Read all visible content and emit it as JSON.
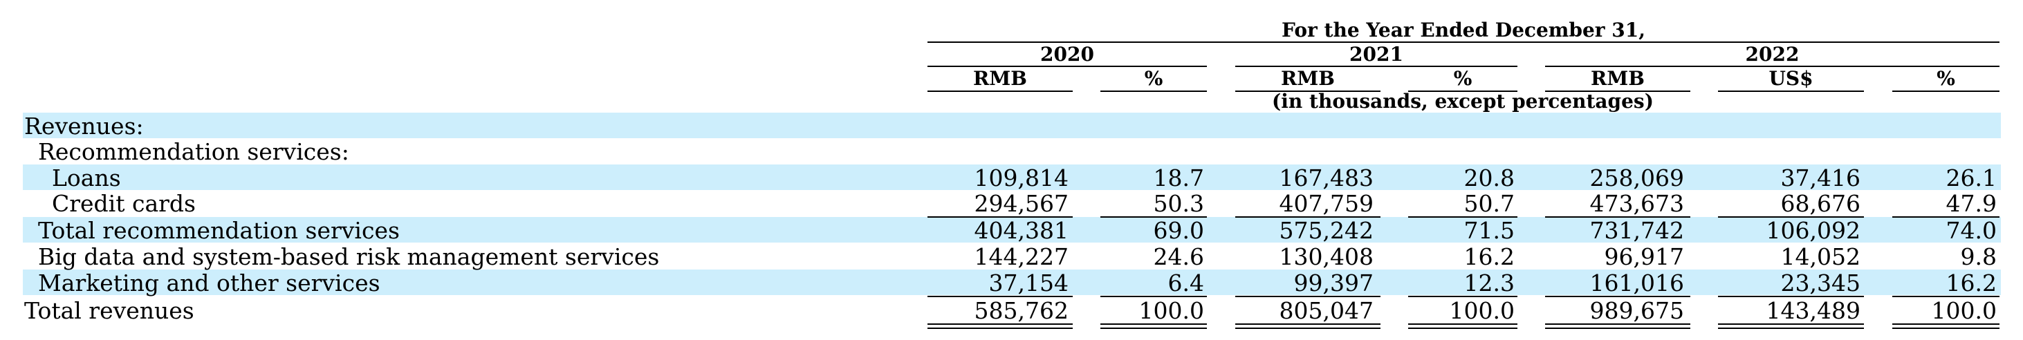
{
  "header": {
    "period_title": "For the Year Ended December 31,",
    "years": [
      "2020",
      "2021",
      "2022"
    ],
    "columns": [
      "RMB",
      "%",
      "RMB",
      "%",
      "RMB",
      "US$",
      "%"
    ],
    "units_note": "(in thousands, except percentages)"
  },
  "rows": [
    {
      "label": "Revenues:",
      "values": [
        "",
        "",
        "",
        "",
        "",
        "",
        ""
      ]
    },
    {
      "label": "Recommendation services:",
      "values": [
        "",
        "",
        "",
        "",
        "",
        "",
        ""
      ]
    },
    {
      "label": "Loans",
      "values": [
        "109,814",
        "18.7",
        "167,483",
        "20.8",
        "258,069",
        "37,416",
        "26.1"
      ]
    },
    {
      "label": "Credit cards",
      "values": [
        "294,567",
        "50.3",
        "407,759",
        "50.7",
        "473,673",
        "68,676",
        "47.9"
      ]
    },
    {
      "label": "Total recommendation services",
      "values": [
        "404,381",
        "69.0",
        "575,242",
        "71.5",
        "731,742",
        "106,092",
        "74.0"
      ]
    },
    {
      "label": "Big data and system-based risk management services",
      "values": [
        "144,227",
        "24.6",
        "130,408",
        "16.2",
        "96,917",
        "14,052",
        "9.8"
      ]
    },
    {
      "label": "Marketing and other services",
      "values": [
        "37,154",
        "6.4",
        "99,397",
        "12.3",
        "161,016",
        "23,345",
        "16.2"
      ]
    },
    {
      "label": "Total revenues",
      "values": [
        "585,762",
        "100.0",
        "805,047",
        "100.0",
        "989,675",
        "143,489",
        "100.0"
      ]
    }
  ],
  "colors": {
    "band": "#cdeefc",
    "text": "#000000"
  }
}
